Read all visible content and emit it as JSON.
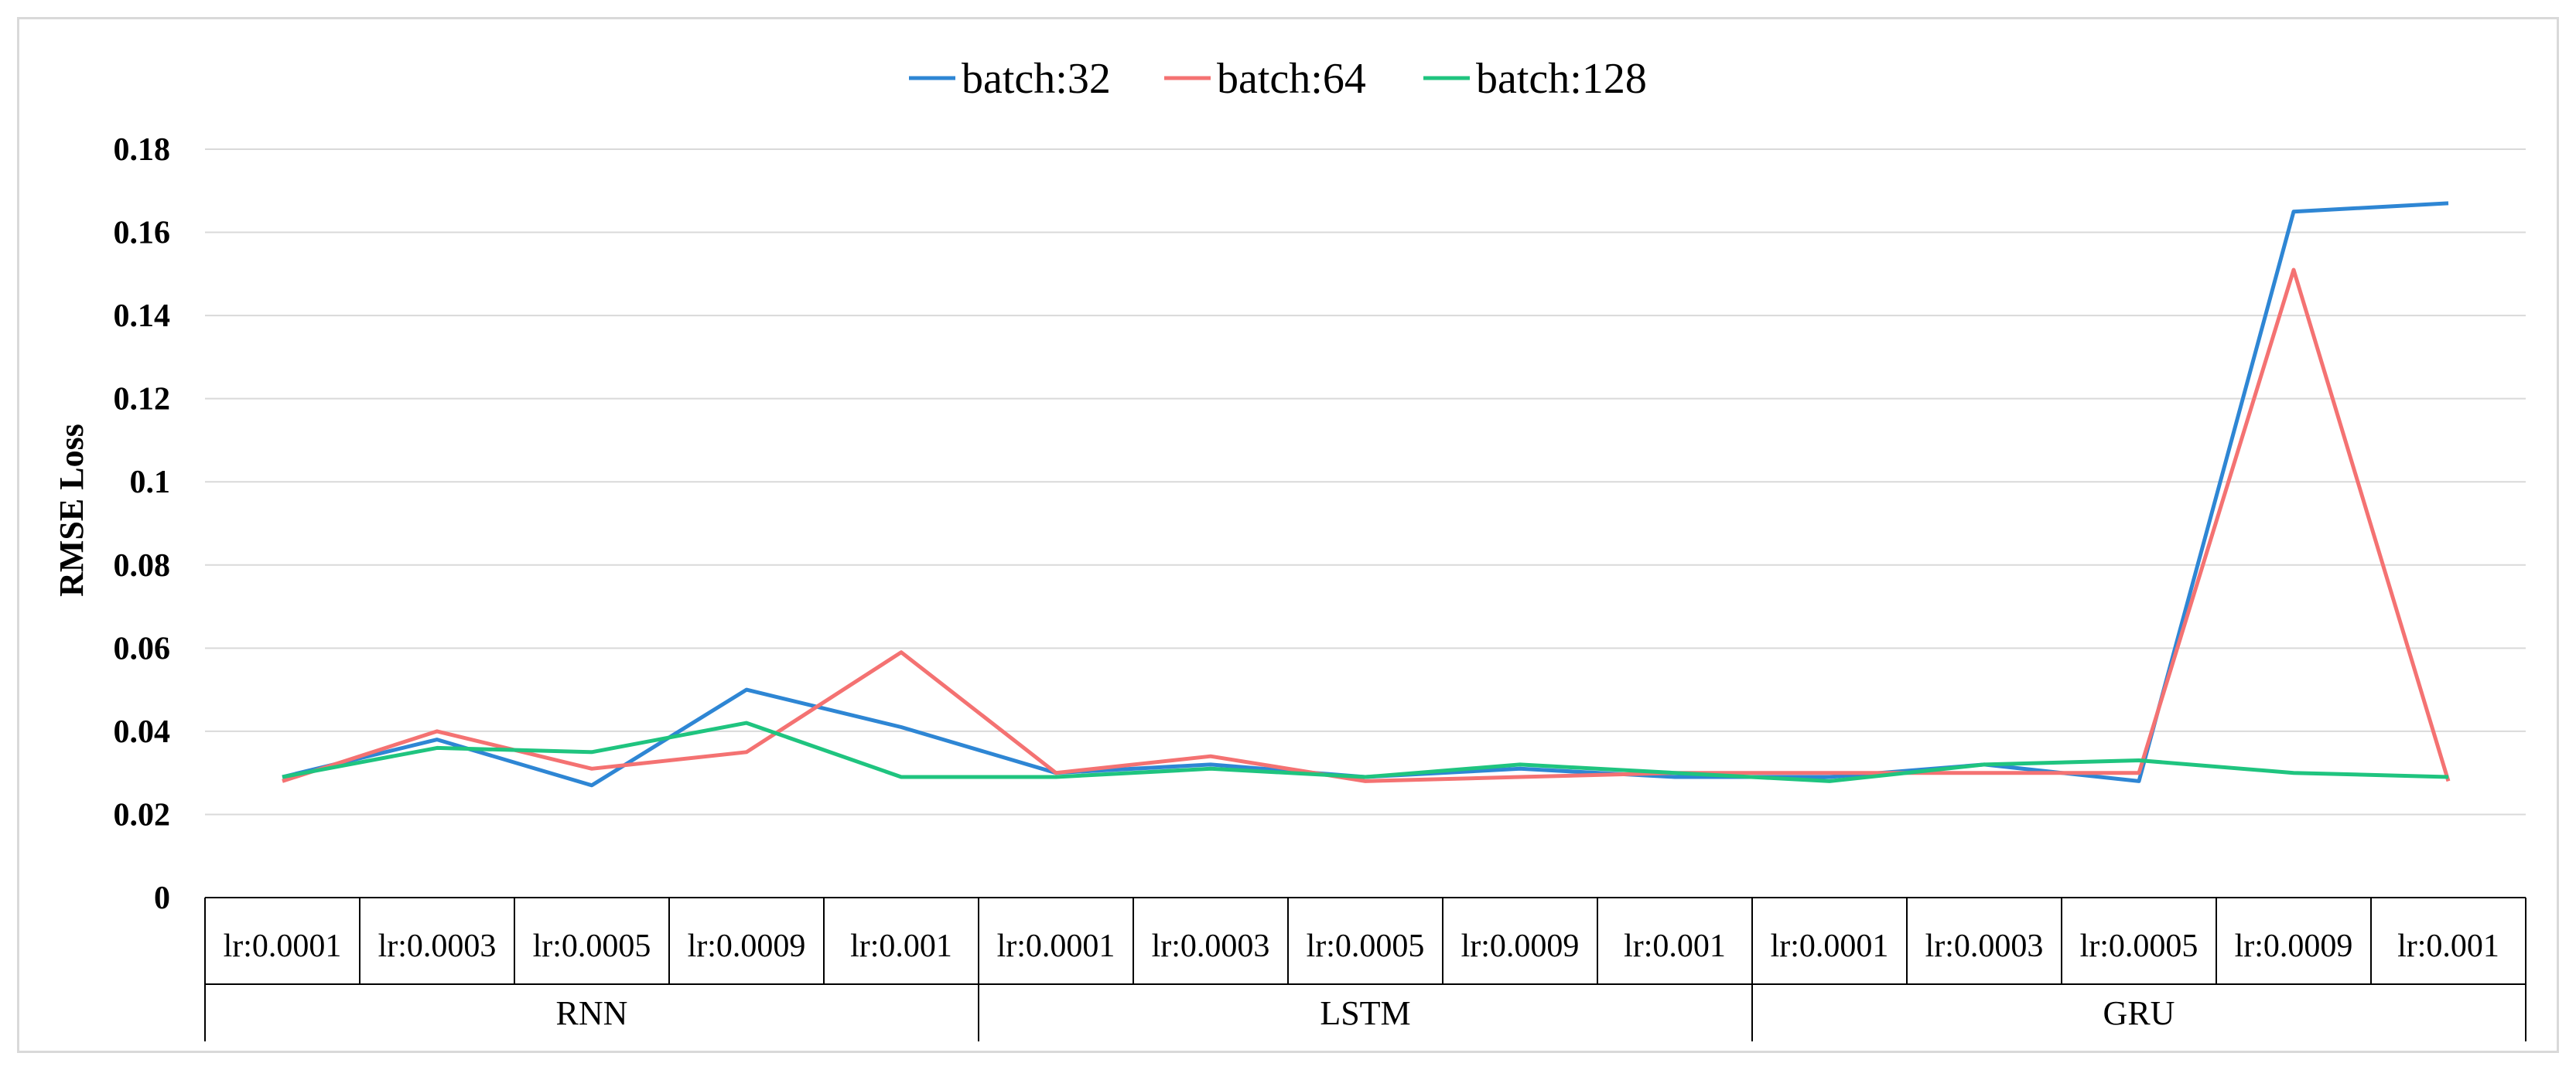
{
  "chart_data": {
    "type": "line",
    "title": "",
    "xlabel": "",
    "ylabel": "RMSE Loss",
    "ylim": [
      0,
      0.18
    ],
    "y_ticks": [
      "0",
      "0.02",
      "0.04",
      "0.06",
      "0.08",
      "0.1",
      "0.12",
      "0.14",
      "0.16",
      "0.18"
    ],
    "grid": "horizontal",
    "legend_position": "top-center",
    "categories": [
      "lr:0.0001",
      "lr:0.0003",
      "lr:0.0005",
      "lr:0.0009",
      "lr:0.001",
      "lr:0.0001",
      "lr:0.0003",
      "lr:0.0005",
      "lr:0.0009",
      "lr:0.001",
      "lr:0.0001",
      "lr:0.0003",
      "lr:0.0005",
      "lr:0.0009",
      "lr:0.001"
    ],
    "groups": [
      {
        "name": "RNN",
        "size": 5
      },
      {
        "name": "LSTM",
        "size": 5
      },
      {
        "name": "GRU",
        "size": 5
      }
    ],
    "series": [
      {
        "name": "batch:32",
        "color": "#2e86d4",
        "values": [
          0.029,
          0.038,
          0.027,
          0.05,
          0.041,
          0.03,
          0.032,
          0.029,
          0.031,
          0.029,
          0.029,
          0.032,
          0.028,
          0.165,
          0.167
        ]
      },
      {
        "name": "batch:64",
        "color": "#f47272",
        "values": [
          0.028,
          0.04,
          0.031,
          0.035,
          0.059,
          0.03,
          0.034,
          0.028,
          0.029,
          0.03,
          0.03,
          0.03,
          0.03,
          0.151,
          0.028
        ]
      },
      {
        "name": "batch:128",
        "color": "#1fc47f",
        "values": [
          0.029,
          0.036,
          0.035,
          0.042,
          0.029,
          0.029,
          0.031,
          0.029,
          0.032,
          0.03,
          0.028,
          0.032,
          0.033,
          0.03,
          0.029
        ]
      }
    ]
  }
}
